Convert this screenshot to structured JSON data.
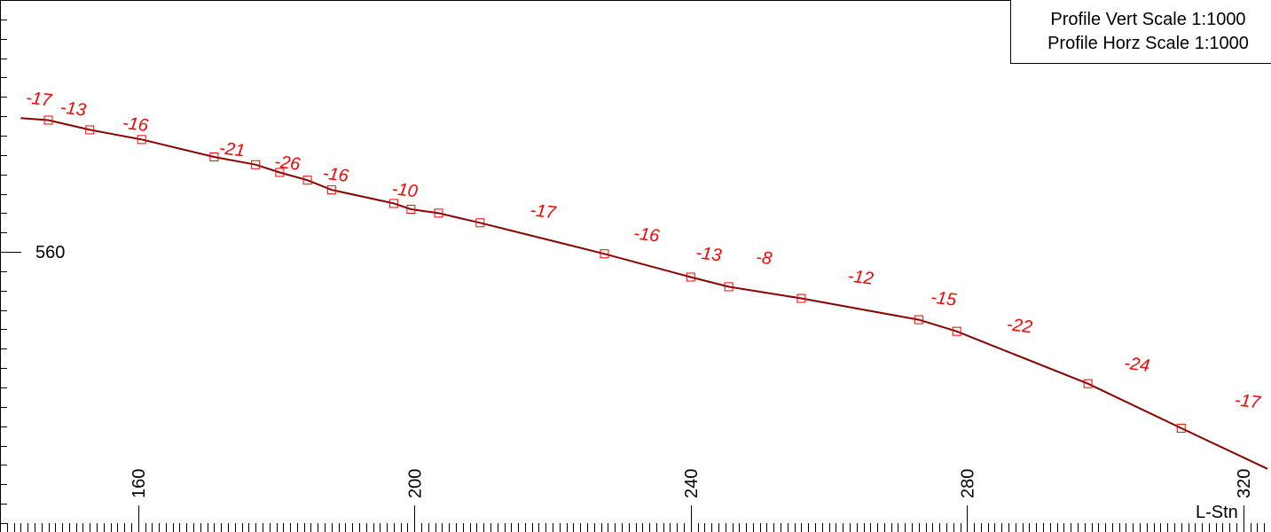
{
  "chart_data": {
    "type": "line",
    "x": [
      143,
      147,
      153,
      160.5,
      171,
      177,
      180.5,
      184.5,
      188,
      197,
      199.5,
      203.5,
      209.5,
      227.5,
      240,
      245.5,
      256,
      273,
      278.5,
      297.5,
      311,
      323.5
    ],
    "y": [
      566.9,
      566.8,
      566.3,
      565.8,
      564.9,
      564.5,
      564.1,
      563.7,
      563.2,
      562.5,
      562.2,
      562.0,
      561.5,
      559.9,
      558.7,
      558.2,
      557.6,
      556.5,
      555.9,
      553.2,
      550.9,
      548.8
    ],
    "grades": [
      {
        "label": "-17",
        "x": 145.5,
        "y": 567.6
      },
      {
        "label": "-13",
        "x": 150.5,
        "y": 567.1
      },
      {
        "label": "-16",
        "x": 159.5,
        "y": 566.3
      },
      {
        "label": "-21",
        "x": 173.5,
        "y": 565.0
      },
      {
        "label": "-26",
        "x": 181.5,
        "y": 564.3
      },
      {
        "label": "-16",
        "x": 188.5,
        "y": 563.7
      },
      {
        "label": "-10",
        "x": 198.5,
        "y": 562.9
      },
      {
        "label": "-17",
        "x": 218.5,
        "y": 561.8
      },
      {
        "label": "-16",
        "x": 233.5,
        "y": 560.6
      },
      {
        "label": "-13",
        "x": 242.5,
        "y": 559.6
      },
      {
        "label": "-8",
        "x": 250.5,
        "y": 559.4
      },
      {
        "label": "-12",
        "x": 264.5,
        "y": 558.4
      },
      {
        "label": "-15",
        "x": 276.5,
        "y": 557.3
      },
      {
        "label": "-22",
        "x": 287.5,
        "y": 555.9
      },
      {
        "label": "-24",
        "x": 304.5,
        "y": 553.9
      },
      {
        "label": "-17",
        "x": 320.5,
        "y": 552.0
      }
    ],
    "xlim": [
      140,
      324
    ],
    "ylim": [
      546,
      573
    ],
    "x_ticks": [
      160,
      200,
      240,
      280,
      320
    ],
    "y_ticks": [
      560
    ],
    "xlabel": "L-Stn",
    "grid": false,
    "legend": null
  },
  "scale_box": {
    "vert": "Profile Vert Scale 1:1000",
    "horz": "Profile Horz Scale 1:1000"
  },
  "colors": {
    "profile_line": "#8b0000",
    "markers": "#ff0000",
    "grade_labels": "#ff0000",
    "axes": "#000000"
  }
}
